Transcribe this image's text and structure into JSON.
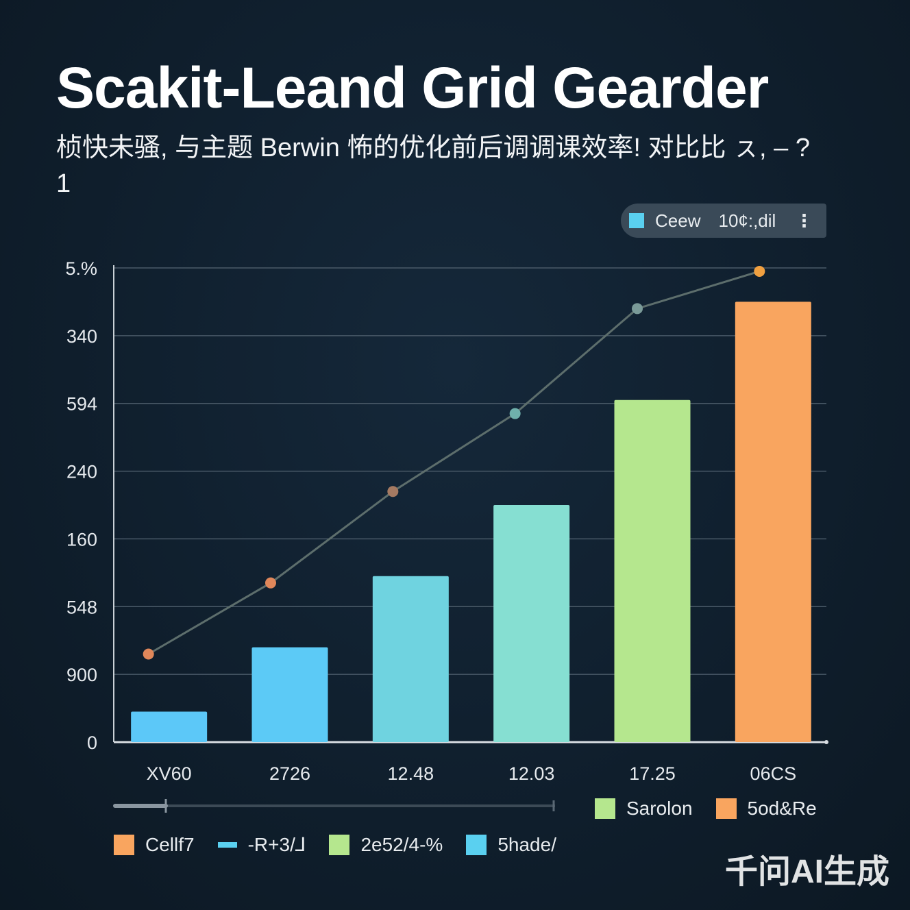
{
  "title": "Scakit-Leand Grid Gearder",
  "subtitle": "桢快未骚, 与主题 Berwin 怖的优化前后调调课效率! 对比比 ㇲ, – ?1",
  "legend_top": {
    "label": "Ceew",
    "value": "10¢:,dil",
    "more_icon": "more-vertical-icon",
    "swatch_color": "#5ad0f0"
  },
  "chart_data": {
    "type": "bar",
    "categories": [
      "XV60",
      "2726",
      "12.48",
      "12.03",
      "17.25",
      "06CS"
    ],
    "y_tick_labels": [
      "0",
      "900",
      "548",
      "160",
      "240",
      "594",
      "340",
      "5.%"
    ],
    "series": [
      {
        "name": "",
        "type": "bar",
        "values": [
          0.45,
          1.4,
          2.45,
          3.5,
          5.05,
          6.5
        ],
        "colors": [
          "#5cc8f8",
          "#5ccaf6",
          "#6fd3e0",
          "#86dfd2",
          "#b5e78e",
          "#f9a55f"
        ]
      },
      {
        "name": "",
        "type": "line",
        "values": [
          1.3,
          2.35,
          3.7,
          4.85,
          6.4,
          6.95
        ],
        "color": "#5d6e6c",
        "marker_colors": [
          "#e0875a",
          "#e0875a",
          "#a57a62",
          "#6fb0ac",
          "#7a9a98",
          "#f0a040"
        ]
      }
    ],
    "ylim": [
      0,
      7
    ],
    "grid": true
  },
  "legend_bottom_1": [
    {
      "label": "Sarolon",
      "color": "#b5e78e"
    },
    {
      "label": "5od&Re",
      "color": "#f9a55f"
    }
  ],
  "legend_bottom_2": [
    {
      "label": "Cellf7",
      "color": "#f9a55f",
      "kind": "box"
    },
    {
      "label": "-R+3/⅃",
      "color": "#5ad0f0",
      "kind": "line"
    },
    {
      "label": "2e52/4-%",
      "color": "#b5e78e",
      "kind": "box"
    },
    {
      "label": "5hade/",
      "color": "#5ad0f0",
      "kind": "box"
    }
  ],
  "watermark": "千问AI生成"
}
